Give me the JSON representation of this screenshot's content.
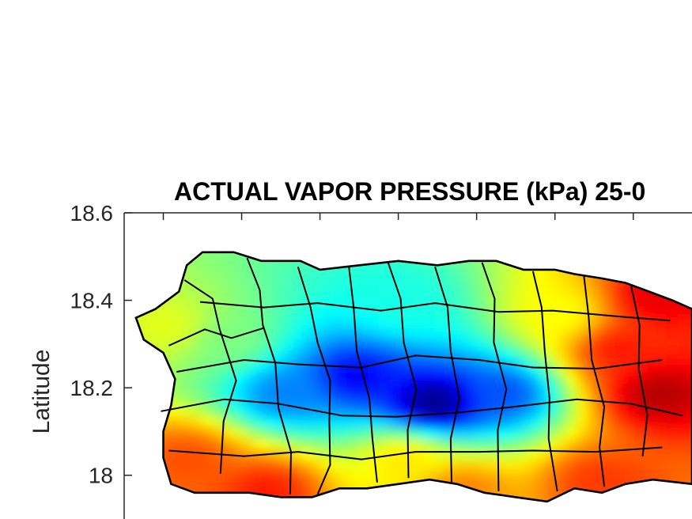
{
  "chart_data": {
    "type": "heatmap",
    "title": "ACTUAL VAPOR PRESSURE (kPa) 25-0",
    "xlabel": "",
    "ylabel": "Latitude",
    "ylim": [
      17.9,
      18.6
    ],
    "yticks": [
      18.6,
      18.4,
      18.2,
      18
    ],
    "ytick_labels": [
      "18.6",
      "18.4",
      "18.2",
      "18"
    ],
    "xlim": [
      -67.3,
      -65.85
    ],
    "colormap": "jet",
    "colormap_colors": [
      "#00007f",
      "#0000ff",
      "#007fff",
      "#00ffff",
      "#7fff7f",
      "#ffff00",
      "#ff7f00",
      "#ff0000",
      "#7f0000"
    ],
    "grid": false,
    "border_color": "#000000",
    "field_description_levels": [
      {
        "lon": -66.52,
        "lat": 18.18,
        "level": 0.0
      },
      {
        "lon": -66.72,
        "lat": 18.24,
        "level": 0.12
      },
      {
        "lon": -66.9,
        "lat": 18.2,
        "level": 0.25
      },
      {
        "lon": -66.35,
        "lat": 18.2,
        "level": 0.2
      },
      {
        "lon": -66.6,
        "lat": 18.4,
        "level": 0.4
      },
      {
        "lon": -67.05,
        "lat": 18.32,
        "level": 0.5
      },
      {
        "lon": -67.2,
        "lat": 18.35,
        "level": 0.6
      },
      {
        "lon": -66.2,
        "lat": 18.38,
        "level": 0.62
      },
      {
        "lon": -66.6,
        "lat": 18.05,
        "level": 0.65
      },
      {
        "lon": -67.15,
        "lat": 18.05,
        "level": 0.8
      },
      {
        "lon": -66.45,
        "lat": 17.98,
        "level": 0.75
      },
      {
        "lon": -66.05,
        "lat": 18.3,
        "level": 0.85
      },
      {
        "lon": -65.95,
        "lat": 18.2,
        "level": 0.95
      },
      {
        "lon": -65.95,
        "lat": 18.42,
        "level": 0.9
      },
      {
        "lon": -66.1,
        "lat": 18.0,
        "level": 0.82
      },
      {
        "lon": -66.95,
        "lat": 17.98,
        "level": 0.85
      }
    ]
  }
}
